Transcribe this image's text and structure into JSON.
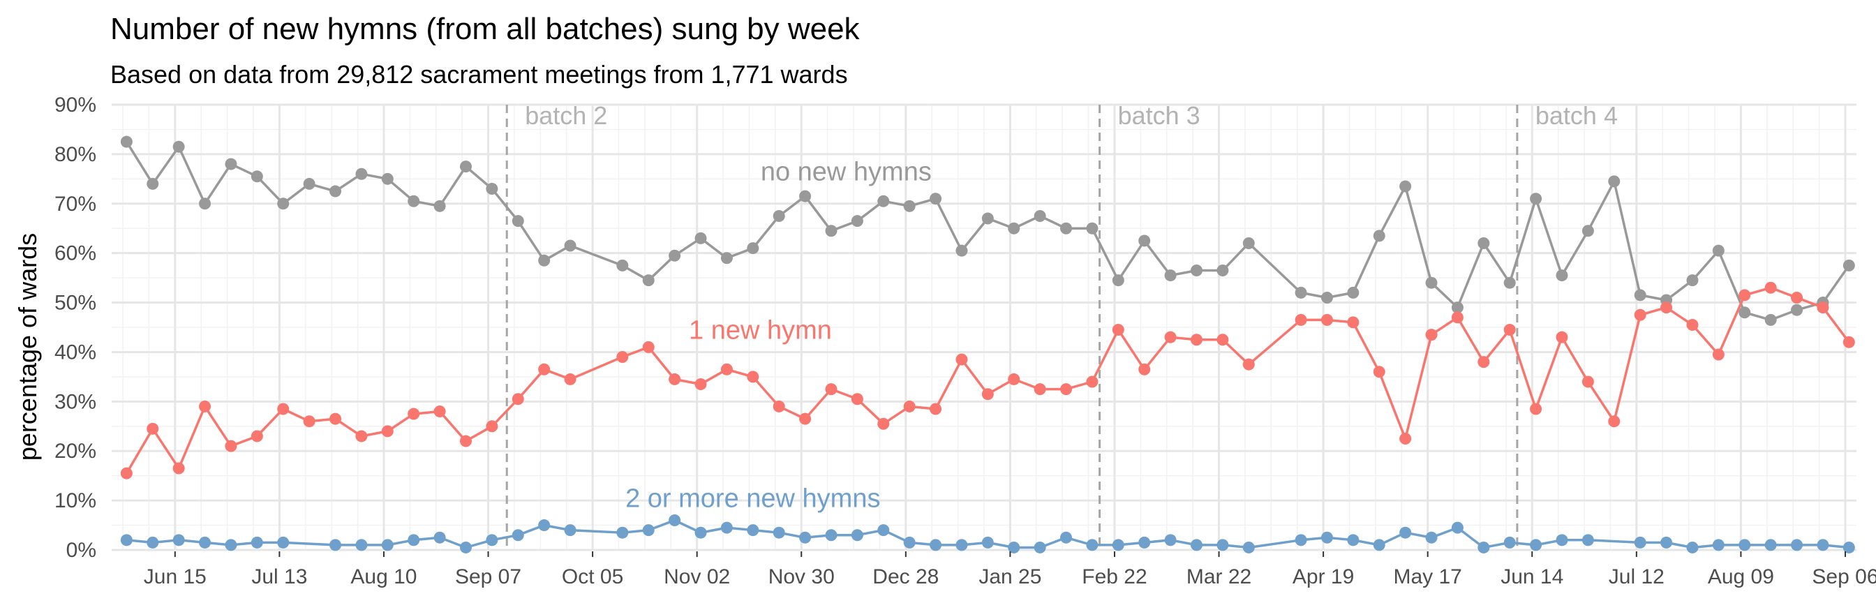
{
  "chart_data": {
    "type": "line",
    "title": "Number of new hymns (from all batches) sung by week",
    "subtitle": "Based on data from 29,812 sacrament meetings from 1,771 wards",
    "xlabel": "",
    "ylabel": "percentage of wards",
    "x_range": [
      "2024-05-29",
      "2025-09-09"
    ],
    "ylim": [
      0,
      90
    ],
    "y_ticks": [
      0,
      10,
      20,
      30,
      40,
      50,
      60,
      70,
      80,
      90
    ],
    "y_tick_labels": [
      "0%",
      "10%",
      "20%",
      "30%",
      "40%",
      "50%",
      "60%",
      "70%",
      "80%",
      "90%"
    ],
    "x_ticks": [
      "2024-06-15",
      "2024-07-13",
      "2024-08-10",
      "2024-09-07",
      "2024-10-05",
      "2024-11-02",
      "2024-11-30",
      "2024-12-28",
      "2025-01-25",
      "2025-02-22",
      "2025-03-22",
      "2025-04-19",
      "2025-05-17",
      "2025-06-14",
      "2025-07-12",
      "2025-08-09",
      "2025-09-06"
    ],
    "x_tick_labels": [
      "Jun 15",
      "Jul 13",
      "Aug 10",
      "Sep 07",
      "Oct 05",
      "Nov 02",
      "Nov 30",
      "Dec 28",
      "Jan 25",
      "Feb 22",
      "Mar 22",
      "Apr 19",
      "May 17",
      "Jun 14",
      "Jul 12",
      "Aug 09",
      "Sep 06"
    ],
    "grid": true,
    "legend": "none",
    "batches": [
      {
        "label": "batch 2",
        "date": "2024-09-12"
      },
      {
        "label": "batch 3",
        "date": "2025-02-18"
      },
      {
        "label": "batch 4",
        "date": "2025-06-10"
      }
    ],
    "series": [
      {
        "name": "no new hymns",
        "color": "#999999",
        "label_anchor": {
          "date": "2024-12-12",
          "value": 76.5
        },
        "points": [
          [
            "2024-06-02",
            82.5
          ],
          [
            "2024-06-09",
            74.0
          ],
          [
            "2024-06-16",
            81.5
          ],
          [
            "2024-06-23",
            70.0
          ],
          [
            "2024-06-30",
            78.0
          ],
          [
            "2024-07-07",
            75.5
          ],
          [
            "2024-07-14",
            70.0
          ],
          [
            "2024-07-21",
            74.0
          ],
          [
            "2024-07-28",
            72.5
          ],
          [
            "2024-08-04",
            76.0
          ],
          [
            "2024-08-11",
            75.0
          ],
          [
            "2024-08-18",
            70.5
          ],
          [
            "2024-08-25",
            69.5
          ],
          [
            "2024-09-01",
            77.5
          ],
          [
            "2024-09-08",
            73.0
          ],
          [
            "2024-09-15",
            66.5
          ],
          [
            "2024-09-22",
            58.5
          ],
          [
            "2024-09-29",
            61.5
          ],
          [
            "2024-10-13",
            57.5
          ],
          [
            "2024-10-20",
            54.5
          ],
          [
            "2024-10-27",
            59.5
          ],
          [
            "2024-11-03",
            63.0
          ],
          [
            "2024-11-10",
            59.0
          ],
          [
            "2024-11-17",
            61.0
          ],
          [
            "2024-11-24",
            67.5
          ],
          [
            "2024-12-01",
            71.5
          ],
          [
            "2024-12-08",
            64.5
          ],
          [
            "2024-12-15",
            66.5
          ],
          [
            "2024-12-22",
            70.5
          ],
          [
            "2024-12-29",
            69.5
          ],
          [
            "2025-01-05",
            71.0
          ],
          [
            "2025-01-12",
            60.5
          ],
          [
            "2025-01-19",
            67.0
          ],
          [
            "2025-01-26",
            65.0
          ],
          [
            "2025-02-02",
            67.5
          ],
          [
            "2025-02-09",
            65.0
          ],
          [
            "2025-02-16",
            65.0
          ],
          [
            "2025-02-23",
            54.5
          ],
          [
            "2025-03-02",
            62.5
          ],
          [
            "2025-03-09",
            55.5
          ],
          [
            "2025-03-16",
            56.5
          ],
          [
            "2025-03-23",
            56.5
          ],
          [
            "2025-03-30",
            62.0
          ],
          [
            "2025-04-13",
            52.0
          ],
          [
            "2025-04-20",
            51.0
          ],
          [
            "2025-04-27",
            52.0
          ],
          [
            "2025-05-04",
            63.5
          ],
          [
            "2025-05-11",
            73.5
          ],
          [
            "2025-05-18",
            54.0
          ],
          [
            "2025-05-25",
            49.0
          ],
          [
            "2025-06-01",
            62.0
          ],
          [
            "2025-06-08",
            54.0
          ],
          [
            "2025-06-15",
            71.0
          ],
          [
            "2025-06-22",
            55.5
          ],
          [
            "2025-06-29",
            64.5
          ],
          [
            "2025-07-06",
            74.5
          ],
          [
            "2025-07-13",
            51.5
          ],
          [
            "2025-07-20",
            50.5
          ],
          [
            "2025-07-27",
            54.5
          ],
          [
            "2025-08-03",
            60.5
          ],
          [
            "2025-08-10",
            48.0
          ],
          [
            "2025-08-17",
            46.5
          ],
          [
            "2025-08-24",
            48.5
          ],
          [
            "2025-08-31",
            50.0
          ],
          [
            "2025-09-07",
            57.5
          ]
        ]
      },
      {
        "name": "1 new hymn",
        "color": "#f8766d",
        "label_anchor": {
          "date": "2024-11-19",
          "value": 44.5
        },
        "points": [
          [
            "2024-06-02",
            15.5
          ],
          [
            "2024-06-09",
            24.5
          ],
          [
            "2024-06-16",
            16.5
          ],
          [
            "2024-06-23",
            29.0
          ],
          [
            "2024-06-30",
            21.0
          ],
          [
            "2024-07-07",
            23.0
          ],
          [
            "2024-07-14",
            28.5
          ],
          [
            "2024-07-21",
            26.0
          ],
          [
            "2024-07-28",
            26.5
          ],
          [
            "2024-08-04",
            23.0
          ],
          [
            "2024-08-11",
            24.0
          ],
          [
            "2024-08-18",
            27.5
          ],
          [
            "2024-08-25",
            28.0
          ],
          [
            "2024-09-01",
            22.0
          ],
          [
            "2024-09-08",
            25.0
          ],
          [
            "2024-09-15",
            30.5
          ],
          [
            "2024-09-22",
            36.5
          ],
          [
            "2024-09-29",
            34.5
          ],
          [
            "2024-10-13",
            39.0
          ],
          [
            "2024-10-20",
            41.0
          ],
          [
            "2024-10-27",
            34.5
          ],
          [
            "2024-11-03",
            33.5
          ],
          [
            "2024-11-10",
            36.5
          ],
          [
            "2024-11-17",
            35.0
          ],
          [
            "2024-11-24",
            29.0
          ],
          [
            "2024-12-01",
            26.5
          ],
          [
            "2024-12-08",
            32.5
          ],
          [
            "2024-12-15",
            30.5
          ],
          [
            "2024-12-22",
            25.5
          ],
          [
            "2024-12-29",
            29.0
          ],
          [
            "2025-01-05",
            28.5
          ],
          [
            "2025-01-12",
            38.5
          ],
          [
            "2025-01-19",
            31.5
          ],
          [
            "2025-01-26",
            34.5
          ],
          [
            "2025-02-02",
            32.5
          ],
          [
            "2025-02-09",
            32.5
          ],
          [
            "2025-02-16",
            34.0
          ],
          [
            "2025-02-23",
            44.5
          ],
          [
            "2025-03-02",
            36.5
          ],
          [
            "2025-03-09",
            43.0
          ],
          [
            "2025-03-16",
            42.5
          ],
          [
            "2025-03-23",
            42.5
          ],
          [
            "2025-03-30",
            37.5
          ],
          [
            "2025-04-13",
            46.5
          ],
          [
            "2025-04-20",
            46.5
          ],
          [
            "2025-04-27",
            46.0
          ],
          [
            "2025-05-04",
            36.0
          ],
          [
            "2025-05-11",
            22.5
          ],
          [
            "2025-05-18",
            43.5
          ],
          [
            "2025-05-25",
            47.0
          ],
          [
            "2025-06-01",
            38.0
          ],
          [
            "2025-06-08",
            44.5
          ],
          [
            "2025-06-15",
            28.5
          ],
          [
            "2025-06-22",
            43.0
          ],
          [
            "2025-06-29",
            34.0
          ],
          [
            "2025-07-06",
            26.0
          ],
          [
            "2025-07-13",
            47.5
          ],
          [
            "2025-07-20",
            49.0
          ],
          [
            "2025-07-27",
            45.5
          ],
          [
            "2025-08-03",
            39.5
          ],
          [
            "2025-08-10",
            51.5
          ],
          [
            "2025-08-17",
            53.0
          ],
          [
            "2025-08-24",
            51.0
          ],
          [
            "2025-08-31",
            49.0
          ],
          [
            "2025-09-07",
            42.0
          ]
        ]
      },
      {
        "name": "2 or more new hymns",
        "color": "#6fa0cc",
        "label_anchor": {
          "date": "2024-11-17",
          "value": 10.5
        },
        "points": [
          [
            "2024-06-02",
            2.0
          ],
          [
            "2024-06-09",
            1.5
          ],
          [
            "2024-06-16",
            2.0
          ],
          [
            "2024-06-23",
            1.5
          ],
          [
            "2024-06-30",
            1.0
          ],
          [
            "2024-07-07",
            1.5
          ],
          [
            "2024-07-14",
            1.5
          ],
          [
            "2024-07-28",
            1.0
          ],
          [
            "2024-08-04",
            1.0
          ],
          [
            "2024-08-11",
            1.0
          ],
          [
            "2024-08-18",
            2.0
          ],
          [
            "2024-08-25",
            2.5
          ],
          [
            "2024-09-01",
            0.5
          ],
          [
            "2024-09-08",
            2.0
          ],
          [
            "2024-09-15",
            3.0
          ],
          [
            "2024-09-22",
            5.0
          ],
          [
            "2024-09-29",
            4.0
          ],
          [
            "2024-10-13",
            3.5
          ],
          [
            "2024-10-20",
            4.0
          ],
          [
            "2024-10-27",
            6.0
          ],
          [
            "2024-11-03",
            3.5
          ],
          [
            "2024-11-10",
            4.5
          ],
          [
            "2024-11-17",
            4.0
          ],
          [
            "2024-11-24",
            3.5
          ],
          [
            "2024-12-01",
            2.5
          ],
          [
            "2024-12-08",
            3.0
          ],
          [
            "2024-12-15",
            3.0
          ],
          [
            "2024-12-22",
            4.0
          ],
          [
            "2024-12-29",
            1.5
          ],
          [
            "2025-01-05",
            1.0
          ],
          [
            "2025-01-12",
            1.0
          ],
          [
            "2025-01-19",
            1.5
          ],
          [
            "2025-01-26",
            0.5
          ],
          [
            "2025-02-02",
            0.5
          ],
          [
            "2025-02-09",
            2.5
          ],
          [
            "2025-02-16",
            1.0
          ],
          [
            "2025-02-23",
            1.0
          ],
          [
            "2025-03-02",
            1.5
          ],
          [
            "2025-03-09",
            2.0
          ],
          [
            "2025-03-16",
            1.0
          ],
          [
            "2025-03-23",
            1.0
          ],
          [
            "2025-03-30",
            0.5
          ],
          [
            "2025-04-13",
            2.0
          ],
          [
            "2025-04-20",
            2.5
          ],
          [
            "2025-04-27",
            2.0
          ],
          [
            "2025-05-04",
            1.0
          ],
          [
            "2025-05-11",
            3.5
          ],
          [
            "2025-05-18",
            2.5
          ],
          [
            "2025-05-25",
            4.5
          ],
          [
            "2025-06-01",
            0.5
          ],
          [
            "2025-06-08",
            1.5
          ],
          [
            "2025-06-15",
            1.0
          ],
          [
            "2025-06-22",
            2.0
          ],
          [
            "2025-06-29",
            2.0
          ],
          [
            "2025-07-13",
            1.5
          ],
          [
            "2025-07-20",
            1.5
          ],
          [
            "2025-07-27",
            0.5
          ],
          [
            "2025-08-03",
            1.0
          ],
          [
            "2025-08-10",
            1.0
          ],
          [
            "2025-08-17",
            1.0
          ],
          [
            "2025-08-24",
            1.0
          ],
          [
            "2025-08-31",
            1.0
          ],
          [
            "2025-09-07",
            0.5
          ]
        ]
      }
    ]
  }
}
